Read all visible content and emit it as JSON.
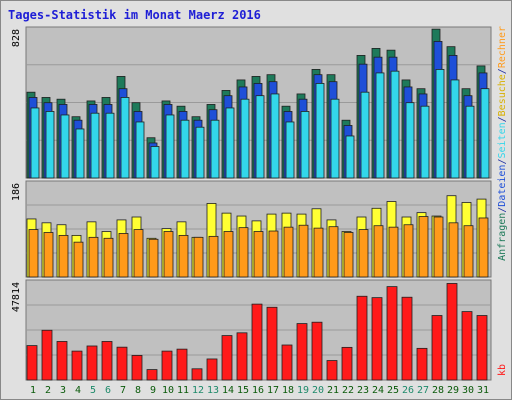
{
  "chart_data": {
    "type": "bar",
    "title": "Tages-Statistik im Monat Maerz 2016",
    "days": [
      "1",
      "2",
      "3",
      "4",
      "5",
      "6",
      "7",
      "8",
      "9",
      "10",
      "11",
      "12",
      "13",
      "14",
      "15",
      "16",
      "17",
      "18",
      "19",
      "20",
      "21",
      "22",
      "23",
      "24",
      "25",
      "26",
      "27",
      "28",
      "29",
      "30",
      "31"
    ],
    "weekend_days": [
      "5",
      "6",
      "12",
      "13",
      "19",
      "20",
      "26",
      "27"
    ],
    "panels": {
      "top": {
        "max_label": "828",
        "max": 828,
        "series": [
          {
            "name": "Anfragen",
            "color": "#1e7a5a",
            "values": [
              490,
              460,
              450,
              350,
              440,
              460,
              580,
              430,
              230,
              440,
              410,
              350,
              420,
              500,
              560,
              580,
              590,
              410,
              480,
              620,
              590,
              330,
              700,
              740,
              730,
              560,
              510,
              850,
              750,
              510,
              640
            ]
          },
          {
            "name": "Dateien",
            "color": "#1e4fd8",
            "values": [
              460,
              430,
              420,
              330,
              420,
              420,
              510,
              380,
              200,
              420,
              380,
              330,
              390,
              470,
              520,
              540,
              550,
              380,
              450,
              590,
              550,
              300,
              650,
              690,
              690,
              520,
              480,
              780,
              700,
              470,
              600
            ]
          },
          {
            "name": "Seiten",
            "color": "#33d6ea",
            "values": [
              400,
              380,
              360,
              280,
              370,
              370,
              460,
              320,
              180,
              360,
              330,
              290,
              330,
              400,
              450,
              470,
              480,
              320,
              380,
              540,
              450,
              240,
              490,
              600,
              610,
              430,
              410,
              620,
              560,
              410,
              510
            ]
          }
        ]
      },
      "middle": {
        "max_label": "186",
        "max": 186,
        "series": [
          {
            "name": "Besuche",
            "color": "#ffff33",
            "values": [
              120,
              112,
              108,
              86,
              114,
              94,
              118,
              124,
              80,
              100,
              114,
              82,
              152,
              132,
              126,
              116,
              130,
              132,
              130,
              141,
              118,
              94,
              124,
              142,
              156,
              124,
              133,
              126,
              168,
              154,
              161
            ]
          },
          {
            "name": "Rechner",
            "color": "#ff9a1a",
            "values": [
              98,
              92,
              86,
              72,
              82,
              80,
              90,
              98,
              78,
              94,
              86,
              82,
              84,
              94,
              102,
              94,
              95,
              103,
              107,
              101,
              104,
              92,
              98,
              106,
              103,
              108,
              125,
              124,
              112,
              106,
              122
            ]
          }
        ]
      },
      "bottom": {
        "max_label": "47814",
        "max": 47814,
        "series": [
          {
            "name": "kb",
            "color": "#ff1a1a",
            "values": [
              17500,
              25300,
              19600,
              14700,
              17300,
              19600,
              16700,
              12500,
              5300,
              14700,
              15700,
              5700,
              10700,
              22600,
              24000,
              38600,
              37000,
              17800,
              28700,
              29400,
              9900,
              16600,
              42600,
              41900,
              47500,
              42100,
              16100,
              32800,
              49100,
              34800,
              32800
            ]
          }
        ]
      }
    },
    "legend": {
      "top": [
        "Anfragen",
        "/",
        "Dateien",
        "/",
        "Seiten",
        "/",
        "Besuche",
        "/",
        "Rechner"
      ],
      "bottom": "kb"
    }
  },
  "colors": {
    "background": "#ffffff",
    "frame": "#e0e0e0",
    "plot": "#c0c0c0",
    "title": "#1e1ed6",
    "separator": "#ffffff",
    "label_dark": "#0a5a0a",
    "label_weekend": "#1e8a6a",
    "legend_slash": "#1e2ea0"
  }
}
